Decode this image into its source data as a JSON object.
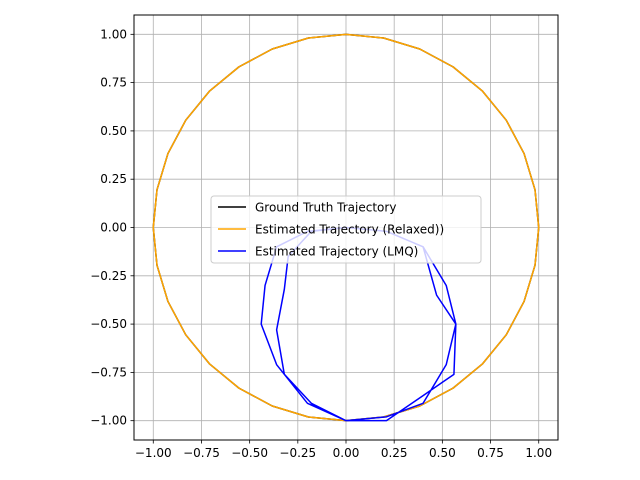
{
  "chart_data": {
    "type": "line",
    "title": "",
    "xlabel": "",
    "ylabel": "",
    "xlim": [
      -1.1,
      1.1
    ],
    "ylim": [
      -1.1,
      1.1
    ],
    "grid": true,
    "aspect": "equal",
    "legend_position": "center",
    "x_ticks": [
      "−1.00",
      "−0.75",
      "−0.50",
      "−0.25",
      "0.00",
      "0.25",
      "0.50",
      "0.75",
      "1.00"
    ],
    "y_ticks": [
      "1.00",
      "0.75",
      "0.50",
      "0.25",
      "0.00",
      "−0.25",
      "−0.50",
      "−0.75",
      "−1.00"
    ],
    "series": [
      {
        "name": "Ground Truth Trajectory",
        "color": "#000000",
        "shape": "circle",
        "center": [
          0,
          0
        ],
        "radius": 1.0,
        "segments": 32
      },
      {
        "name": "Estimated Trajectory (Relaxed))",
        "color": "#ffa500",
        "shape": "circle",
        "center": [
          0,
          0
        ],
        "radius": 1.0,
        "segments": 32
      },
      {
        "name": "Estimated Trajectory (LMQ)",
        "color": "#0000ff",
        "shape": "polyline",
        "points": [
          [
            0.0,
            -1.0
          ],
          [
            0.21,
            -0.98
          ],
          [
            0.4,
            -0.91
          ],
          [
            0.52,
            -0.71
          ],
          [
            0.57,
            -0.5
          ],
          [
            0.52,
            -0.3
          ],
          [
            0.4,
            -0.1
          ],
          [
            0.21,
            -0.02
          ],
          [
            0.0,
            0.0
          ],
          [
            -0.2,
            -0.02
          ],
          [
            -0.36,
            -0.1
          ],
          [
            -0.42,
            -0.3
          ],
          [
            -0.44,
            -0.5
          ],
          [
            -0.36,
            -0.71
          ],
          [
            -0.2,
            -0.91
          ],
          [
            0.0,
            -1.0
          ],
          [
            0.21,
            -1.0
          ],
          [
            0.4,
            -0.87
          ],
          [
            0.56,
            -0.76
          ],
          [
            0.57,
            -0.5
          ],
          [
            0.47,
            -0.35
          ],
          [
            0.4,
            -0.1
          ],
          [
            0.21,
            -0.02
          ],
          [
            0.0,
            0.0
          ],
          [
            -0.18,
            -0.02
          ],
          [
            -0.3,
            -0.15
          ],
          [
            -0.32,
            -0.32
          ],
          [
            -0.36,
            -0.53
          ],
          [
            -0.32,
            -0.76
          ],
          [
            -0.18,
            -0.91
          ],
          [
            0.0,
            -1.0
          ]
        ]
      }
    ]
  }
}
